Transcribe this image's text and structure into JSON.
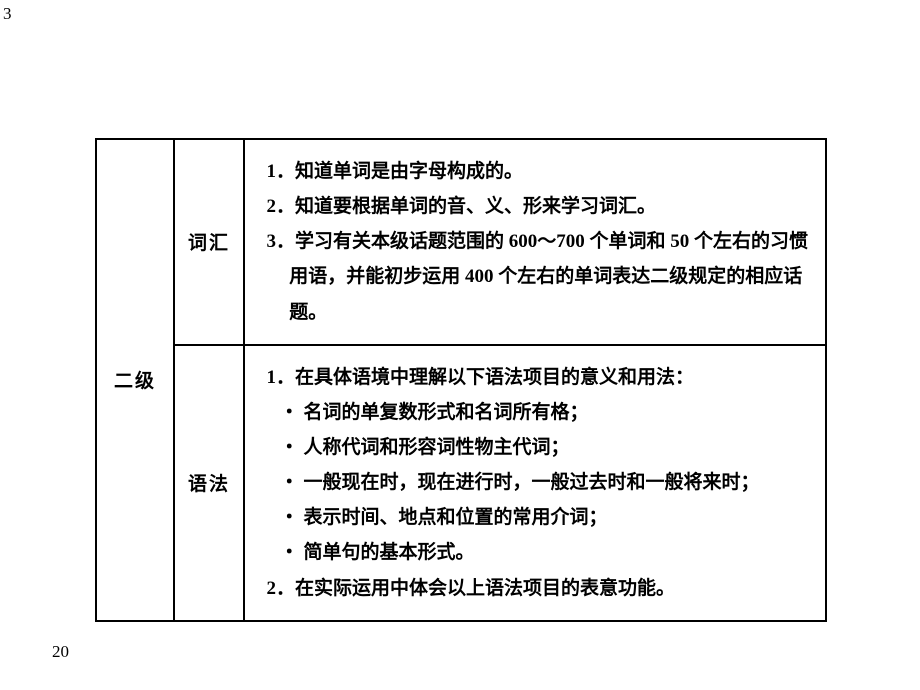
{
  "page_number_top": "3",
  "page_number_bottom": "20",
  "table": {
    "level_label": "二级",
    "rows": [
      {
        "category": "词汇",
        "items": [
          "1．知道单词是由字母构成的。",
          "2．知道要根据单词的音、义、形来学习词汇。",
          "3．学习有关本级话题范围的 600～700 个单词和 50 个左右的习惯用语，并能初步运用 400 个左右的单词表达二级规定的相应话题。"
        ],
        "bullets": []
      },
      {
        "category": "语法",
        "items": [
          "1．在具体语境中理解以下语法项目的意义和用法："
        ],
        "bullets": [
          "・ 名词的单复数形式和名词所有格；",
          "・ 人称代词和形容词性物主代词；",
          "・ 一般现在时，现在进行时，一般过去时和一般将来时；",
          "・ 表示时间、地点和位置的常用介词；",
          "・ 简单句的基本形式。"
        ],
        "items2": [
          "2．在实际运用中体会以上语法项目的表意功能。"
        ]
      }
    ]
  }
}
